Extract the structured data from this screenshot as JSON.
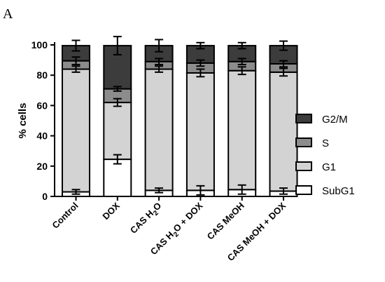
{
  "panel_label": "A",
  "chart_data": {
    "type": "bar",
    "stacked": true,
    "ylabel": "% cells",
    "xlabel": "",
    "ylim": [
      0,
      100
    ],
    "yticks": [
      0,
      20,
      40,
      60,
      80,
      100
    ],
    "categories": [
      {
        "base": "Control",
        "sub": "",
        "rest": ""
      },
      {
        "base": "DOX",
        "sub": "",
        "rest": ""
      },
      {
        "base": "CAS H",
        "sub": "2",
        "rest": "O"
      },
      {
        "base": "CAS H",
        "sub": "2",
        "rest": "O + DOX"
      },
      {
        "base": "CAS MeOH",
        "sub": "",
        "rest": ""
      },
      {
        "base": "CAS MeOH + DOX",
        "sub": "",
        "rest": ""
      }
    ],
    "series": [
      {
        "name": "SubG1",
        "color": "#ffffff",
        "values": [
          3,
          24.5,
          4,
          4,
          4.5,
          3.5
        ],
        "errors": [
          1.5,
          3,
          1.5,
          3,
          3,
          2
        ]
      },
      {
        "name": "G1",
        "color": "#d3d3d3",
        "values": [
          81,
          37.5,
          80,
          77.5,
          78.5,
          78.5
        ],
        "errors": [
          2,
          2.5,
          2,
          2.5,
          2.5,
          2.5
        ]
      },
      {
        "name": "S",
        "color": "#8c8c8c",
        "values": [
          5.5,
          9,
          5,
          6.5,
          6,
          5.5
        ],
        "errors": [
          2.5,
          1.5,
          2,
          2,
          2,
          2
        ]
      },
      {
        "name": "G2/M",
        "color": "#3c3c3c",
        "values": [
          10,
          28.5,
          10.5,
          11.5,
          10.5,
          12
        ],
        "errors": [
          3.5,
          6,
          4,
          2,
          2,
          3
        ]
      }
    ],
    "legend_position": "right"
  }
}
